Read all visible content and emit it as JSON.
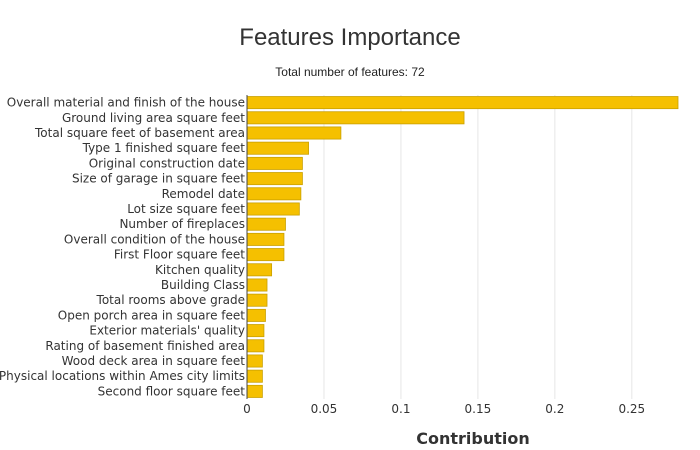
{
  "chart_data": {
    "type": "bar",
    "orientation": "horizontal",
    "title": "Features Importance",
    "subtitle": "Total number of features: 72",
    "xlabel": "Contribution",
    "ylabel": "",
    "xlim": [
      0,
      0.28
    ],
    "xticks": [
      0,
      0.05,
      0.1,
      0.15,
      0.2,
      0.25
    ],
    "xtick_labels": [
      "0",
      "0.05",
      "0.1",
      "0.15",
      "0.2",
      "0.25"
    ],
    "grid": "vertical",
    "bar_color": "#f5c000",
    "bar_edge_color": "#c9a000",
    "categories": [
      "Overall material and finish of the house",
      "Ground living area square feet",
      "Total square feet of basement area",
      "Type 1 finished square feet",
      "Original construction date",
      "Size of garage in square feet",
      "Remodel date",
      "Lot size square feet",
      "Number of fireplaces",
      "Overall condition of the house",
      "First Floor square feet",
      "Kitchen quality",
      "Building Class",
      "Total rooms above grade",
      "Open porch area in square feet",
      "Exterior materials' quality",
      "Rating of basement finished area",
      "Wood deck area in square feet",
      "Physical locations within Ames city limits",
      "Second floor square feet"
    ],
    "values": [
      0.28,
      0.141,
      0.061,
      0.04,
      0.036,
      0.036,
      0.035,
      0.034,
      0.025,
      0.024,
      0.024,
      0.016,
      0.013,
      0.013,
      0.012,
      0.011,
      0.011,
      0.01,
      0.01,
      0.01
    ]
  }
}
